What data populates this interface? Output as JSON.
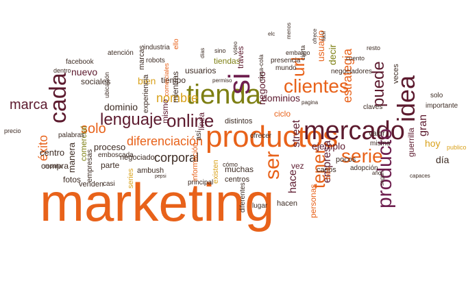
{
  "palette": {
    "orange": "#e8621a",
    "olive": "#7d7f12",
    "maroon": "#5c1a2e",
    "purple": "#6e1f4f",
    "gold": "#d9a11a",
    "dark": "#3b2a22",
    "green": "#4b6b1a"
  },
  "words": [
    {
      "text": "marketing",
      "color": "orange",
      "size": 78,
      "rot": 0
    },
    {
      "text": "productos",
      "color": "orange",
      "size": 44,
      "rot": 0
    },
    {
      "text": "tienda",
      "color": "olive",
      "size": 40,
      "rot": 0
    },
    {
      "text": "mercado",
      "color": "maroon",
      "size": 38,
      "rot": 0
    },
    {
      "text": "clientes",
      "color": "orange",
      "size": 28,
      "rot": 0
    },
    {
      "text": "idea",
      "color": "maroon",
      "size": 36,
      "rot": -90
    },
    {
      "text": "producto",
      "color": "purple",
      "size": 30,
      "rot": -90
    },
    {
      "text": "cada",
      "color": "maroon",
      "size": 34,
      "rot": -90
    },
    {
      "text": "si",
      "color": "purple",
      "size": 44,
      "rot": -90
    },
    {
      "text": "serie",
      "color": "orange",
      "size": 28,
      "rot": 0
    },
    {
      "text": "ser",
      "color": "orange",
      "size": 30,
      "rot": -90
    },
    {
      "text": "tener",
      "color": "orange",
      "size": 26,
      "rot": -90
    },
    {
      "text": "online",
      "color": "maroon",
      "size": 26,
      "rot": 0
    },
    {
      "text": "lenguaje",
      "color": "maroon",
      "size": 24,
      "rot": 0
    },
    {
      "text": "url",
      "color": "orange",
      "size": 26,
      "rot": -90
    },
    {
      "text": "puede",
      "color": "maroon",
      "size": 24,
      "rot": -90
    },
    {
      "text": "estrategia",
      "color": "orange",
      "size": 18,
      "rot": -90
    },
    {
      "text": "marca",
      "color": "maroon",
      "size": 20,
      "rot": 0
    },
    {
      "text": "solo",
      "color": "orange",
      "size": 20,
      "rot": 0
    },
    {
      "text": "nombre",
      "color": "gold",
      "size": 18,
      "rot": 0
    },
    {
      "text": "diferenciación",
      "color": "orange",
      "size": 18,
      "rot": 0
    },
    {
      "text": "corporal",
      "color": "dark",
      "size": 18,
      "rot": 0
    },
    {
      "text": "éxito",
      "color": "orange",
      "size": 18,
      "rot": -90
    },
    {
      "text": "negocio",
      "color": "maroon",
      "size": 14,
      "rot": -90
    },
    {
      "text": "decir",
      "color": "olive",
      "size": 14,
      "rot": -90
    },
    {
      "text": "usuario",
      "color": "orange",
      "size": 14,
      "rot": -90
    },
    {
      "text": "street",
      "color": "maroon",
      "size": 16,
      "rot": -90
    },
    {
      "text": "empresa",
      "color": "maroon",
      "size": 16,
      "rot": -90
    },
    {
      "text": "hace",
      "color": "maroon",
      "size": 16,
      "rot": -90
    },
    {
      "text": "nuevo",
      "color": "maroon",
      "size": 14,
      "rot": 0
    },
    {
      "text": "dominio",
      "color": "dark",
      "size": 14,
      "rot": 0
    },
    {
      "text": "dominios",
      "color": "maroon",
      "size": 14,
      "rot": 0
    },
    {
      "text": "gran",
      "color": "maroon",
      "size": 16,
      "rot": -90
    },
    {
      "text": "hoy",
      "color": "gold",
      "size": 14,
      "rot": 0
    },
    {
      "text": "día",
      "color": "dark",
      "size": 14,
      "rot": 0
    },
    {
      "text": "bien",
      "color": "gold",
      "size": 14,
      "rot": 0
    },
    {
      "text": "mismo",
      "color": "maroon",
      "size": 12,
      "rot": -90
    },
    {
      "text": "mientras",
      "color": "dark",
      "size": 12,
      "rot": -90
    },
    {
      "text": "experiencia",
      "color": "dark",
      "size": 11,
      "rot": -90
    },
    {
      "text": "ejemplo",
      "color": "maroon",
      "size": 14,
      "rot": 0
    },
    {
      "text": "vez",
      "color": "maroon",
      "size": 12,
      "rot": 0
    },
    {
      "text": "ciclo",
      "color": "orange",
      "size": 12,
      "rot": 0
    },
    {
      "text": "proceso",
      "color": "dark",
      "size": 13,
      "rot": 0
    },
    {
      "text": "centro",
      "color": "dark",
      "size": 13,
      "rot": 0
    },
    {
      "text": "compra",
      "color": "dark",
      "size": 12,
      "rot": 0
    },
    {
      "text": "fotos",
      "color": "dark",
      "size": 12,
      "rot": 0
    },
    {
      "text": "venden",
      "color": "dark",
      "size": 11,
      "rot": 0
    },
    {
      "text": "manera",
      "color": "dark",
      "size": 13,
      "rot": -90
    },
    {
      "text": "comercial",
      "color": "olive",
      "size": 12,
      "rot": -90
    },
    {
      "text": "empresas",
      "color": "dark",
      "size": 11,
      "rot": -90
    },
    {
      "text": "sociales",
      "color": "dark",
      "size": 12,
      "rot": 0
    },
    {
      "text": "facebook",
      "color": "dark",
      "size": 10,
      "rot": 0
    },
    {
      "text": "marcas",
      "color": "dark",
      "size": 11,
      "rot": -90
    },
    {
      "text": "atención",
      "color": "dark",
      "size": 10,
      "rot": 0
    },
    {
      "text": "industria",
      "color": "dark",
      "size": 10,
      "rot": 0
    },
    {
      "text": "robots",
      "color": "dark",
      "size": 10,
      "rot": 0
    },
    {
      "text": "tiempo",
      "color": "dark",
      "size": 12,
      "rot": 0
    },
    {
      "text": "usuarios",
      "color": "dark",
      "size": 12,
      "rot": 0
    },
    {
      "text": "tiendas",
      "color": "olive",
      "size": 12,
      "rot": 0
    },
    {
      "text": "través",
      "color": "maroon",
      "size": 12,
      "rot": -90
    },
    {
      "text": "coca-cola",
      "color": "dark",
      "size": 9,
      "rot": -90
    },
    {
      "text": "presencia",
      "color": "dark",
      "size": 10,
      "rot": 0
    },
    {
      "text": "mundo",
      "color": "dark",
      "size": 10,
      "rot": 0
    },
    {
      "text": "casos",
      "color": "dark",
      "size": 11,
      "rot": 0
    },
    {
      "text": "negociadores",
      "color": "dark",
      "size": 10,
      "rot": 0
    },
    {
      "text": "veces",
      "color": "dark",
      "size": 11,
      "rot": -90
    },
    {
      "text": "solo",
      "color": "dark",
      "size": 10,
      "rot": 0
    },
    {
      "text": "importante",
      "color": "dark",
      "size": 10,
      "rot": 0
    },
    {
      "text": "claves",
      "color": "dark",
      "size": 10,
      "rot": 0
    },
    {
      "text": "misma",
      "color": "dark",
      "size": 10,
      "rot": 0
    },
    {
      "text": "valor",
      "color": "dark",
      "size": 11,
      "rot": 0
    },
    {
      "text": "guerrilla",
      "color": "maroon",
      "size": 12,
      "rot": -90
    },
    {
      "text": "pocos",
      "color": "dark",
      "size": 11,
      "rot": 0
    },
    {
      "text": "adopción",
      "color": "dark",
      "size": 10,
      "rot": 0
    },
    {
      "text": "tres",
      "color": "orange",
      "size": 11,
      "rot": -90
    },
    {
      "text": "personas",
      "color": "orange",
      "size": 12,
      "rot": -90
    },
    {
      "text": "distintos",
      "color": "dark",
      "size": 11,
      "rot": 0
    },
    {
      "text": "ofrecer",
      "color": "dark",
      "size": 10,
      "rot": 0
    },
    {
      "text": "línea",
      "color": "maroon",
      "size": 12,
      "rot": -90
    },
    {
      "text": "así",
      "color": "dark",
      "size": 11,
      "rot": -90
    },
    {
      "text": "información",
      "color": "orange",
      "size": 11,
      "rot": -90
    },
    {
      "text": "existen",
      "color": "gold",
      "size": 11,
      "rot": -90
    },
    {
      "text": "muchas",
      "color": "dark",
      "size": 12,
      "rot": 0
    },
    {
      "text": "centros",
      "color": "dark",
      "size": 11,
      "rot": 0
    },
    {
      "text": "principal",
      "color": "dark",
      "size": 10,
      "rot": 0
    },
    {
      "text": "diferentes",
      "color": "dark",
      "size": 10,
      "rot": -90
    },
    {
      "text": "lugar",
      "color": "dark",
      "size": 10,
      "rot": 0
    },
    {
      "text": "hacen",
      "color": "dark",
      "size": 11,
      "rot": 0
    },
    {
      "text": "negociador",
      "color": "dark",
      "size": 11,
      "rot": 0
    },
    {
      "text": "emboscada",
      "color": "dark",
      "size": 10,
      "rot": 0
    },
    {
      "text": "parte",
      "color": "dark",
      "size": 12,
      "rot": 0
    },
    {
      "text": "ambush",
      "color": "dark",
      "size": 11,
      "rot": 0
    },
    {
      "text": "series",
      "color": "gold",
      "size": 11,
      "rot": -90
    },
    {
      "text": "casi",
      "color": "dark",
      "size": 10,
      "rot": 0
    },
    {
      "text": "palabras",
      "color": "dark",
      "size": 10,
      "rot": 0
    },
    {
      "text": "precio",
      "color": "dark",
      "size": 9,
      "rot": 0
    },
    {
      "text": "españa",
      "color": "dark",
      "size": 8,
      "rot": 0
    },
    {
      "text": "dentro",
      "color": "dark",
      "size": 9,
      "rot": 0
    },
    {
      "text": "ubicación",
      "color": "dark",
      "size": 9,
      "rot": -90
    },
    {
      "text": "comerciales",
      "color": "orange",
      "size": 9,
      "rot": -90
    },
    {
      "text": "ello",
      "color": "orange",
      "size": 10,
      "rot": -90
    },
    {
      "text": "sino",
      "color": "dark",
      "size": 9,
      "rot": 0
    },
    {
      "text": "embargo",
      "color": "dark",
      "size": 9,
      "rot": 0
    },
    {
      "text": "cierta",
      "color": "dark",
      "size": 9,
      "rot": -90
    },
    {
      "text": "cuento",
      "color": "dark",
      "size": 9,
      "rot": 0
    },
    {
      "text": "resto",
      "color": "dark",
      "size": 9,
      "rot": 0
    },
    {
      "text": "capaces",
      "color": "dark",
      "size": 8,
      "rot": 0
    },
    {
      "text": "según",
      "color": "dark",
      "size": 8,
      "rot": -90
    },
    {
      "text": "año",
      "color": "dark",
      "size": 8,
      "rot": 0
    },
    {
      "text": "publico",
      "color": "gold",
      "size": 9,
      "rot": 0
    },
    {
      "text": "pepsi",
      "color": "dark",
      "size": 7,
      "rot": 0
    },
    {
      "text": "cómo",
      "color": "dark",
      "size": 9,
      "rot": 0
    },
    {
      "text": "permiso",
      "color": "dark",
      "size": 8,
      "rot": 0
    },
    {
      "text": "vídeo",
      "color": "dark",
      "size": 8,
      "rot": -90
    },
    {
      "text": "días",
      "color": "dark",
      "size": 8,
      "rot": -90
    },
    {
      "text": "ofrece",
      "color": "dark",
      "size": 8,
      "rot": -90
    },
    {
      "text": "pagina",
      "color": "dark",
      "size": 8,
      "rot": 0
    },
    {
      "text": "fácil",
      "color": "dark",
      "size": 8,
      "rot": -90
    },
    {
      "text": "menos",
      "color": "dark",
      "size": 8,
      "rot": -90
    },
    {
      "text": "elc",
      "color": "dark",
      "size": 8,
      "rot": 0
    }
  ]
}
